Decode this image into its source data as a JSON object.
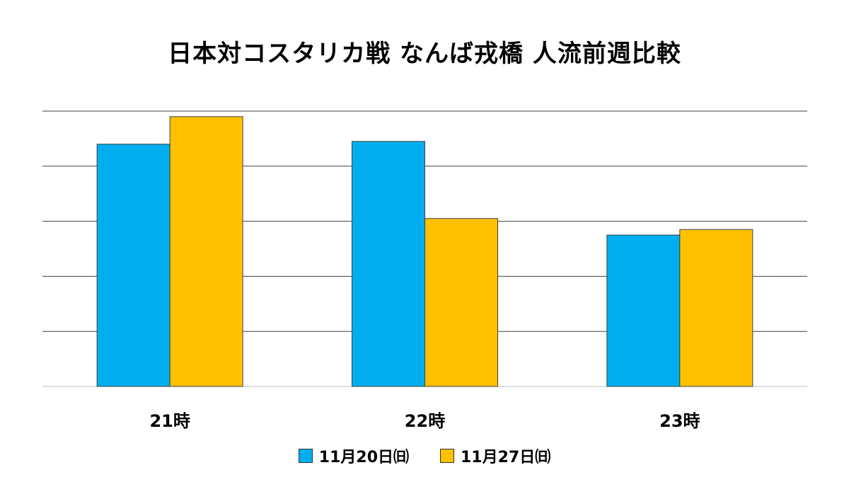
{
  "chart_data": {
    "type": "bar",
    "title": "日本対コスタリカ戦 なんば戎橋 人流前週比較",
    "categories": [
      "21時",
      "22時",
      "23時"
    ],
    "series": [
      {
        "name": "11月20日㈰",
        "color": "#00AEEF",
        "values": [
          88,
          89,
          55
        ]
      },
      {
        "name": "11月27日㈰",
        "color": "#FFC000",
        "values": [
          98,
          61,
          57
        ]
      }
    ],
    "ylim": [
      0,
      100
    ],
    "grid": true,
    "legend": "bottom"
  }
}
